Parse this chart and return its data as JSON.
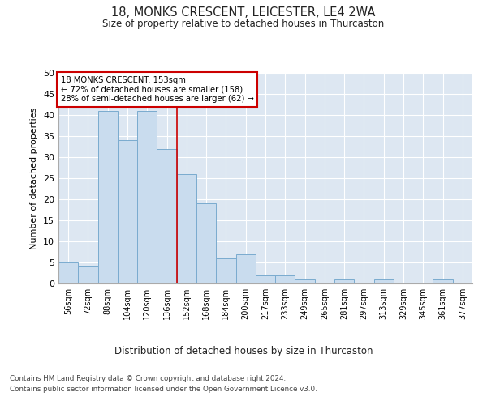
{
  "title": "18, MONKS CRESCENT, LEICESTER, LE4 2WA",
  "subtitle": "Size of property relative to detached houses in Thurcaston",
  "xlabel": "Distribution of detached houses by size in Thurcaston",
  "ylabel": "Number of detached properties",
  "categories": [
    "56sqm",
    "72sqm",
    "88sqm",
    "104sqm",
    "120sqm",
    "136sqm",
    "152sqm",
    "168sqm",
    "184sqm",
    "200sqm",
    "217sqm",
    "233sqm",
    "249sqm",
    "265sqm",
    "281sqm",
    "297sqm",
    "313sqm",
    "329sqm",
    "345sqm",
    "361sqm",
    "377sqm"
  ],
  "values": [
    5,
    4,
    41,
    34,
    41,
    32,
    26,
    19,
    6,
    7,
    2,
    2,
    1,
    0,
    1,
    0,
    1,
    0,
    0,
    1,
    0
  ],
  "bar_color": "#c9dcee",
  "bar_edge_color": "#7aabcf",
  "property_bin_index": 6,
  "annotation_title": "18 MONKS CRESCENT: 153sqm",
  "annotation_line1": "← 72% of detached houses are smaller (158)",
  "annotation_line2": "28% of semi-detached houses are larger (62) →",
  "annotation_box_color": "#ffffff",
  "annotation_box_edge_color": "#cc0000",
  "vline_color": "#cc0000",
  "ylim": [
    0,
    50
  ],
  "yticks": [
    0,
    5,
    10,
    15,
    20,
    25,
    30,
    35,
    40,
    45,
    50
  ],
  "fig_bg_color": "#ffffff",
  "plot_bg_color": "#dde7f2",
  "grid_color": "#ffffff",
  "footer_line1": "Contains HM Land Registry data © Crown copyright and database right 2024.",
  "footer_line2": "Contains public sector information licensed under the Open Government Licence v3.0."
}
